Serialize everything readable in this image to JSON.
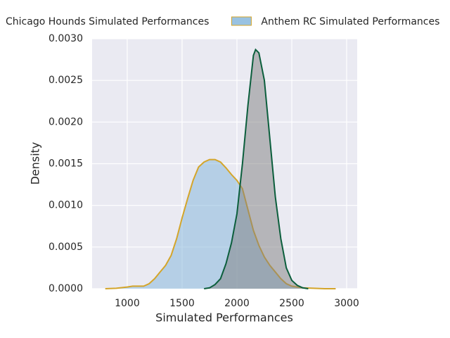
{
  "chart_data": {
    "type": "kde",
    "xlabel": "Simulated Performances",
    "ylabel": "Density",
    "xlim": [
      680,
      3096
    ],
    "ylim": [
      0,
      0.003
    ],
    "xticks": [
      1000,
      1500,
      2000,
      2500,
      3000
    ],
    "yticks": [
      {
        "value": 0,
        "label": "0.0000"
      },
      {
        "value": 0.0005,
        "label": "0.0005"
      },
      {
        "value": 0.001,
        "label": "0.0010"
      },
      {
        "value": 0.0015,
        "label": "0.0015"
      },
      {
        "value": 0.002,
        "label": "0.0020"
      },
      {
        "value": 0.0025,
        "label": "0.0025"
      },
      {
        "value": 0.003,
        "label": "0.0030"
      }
    ],
    "grid": true,
    "legend": "top",
    "series": [
      {
        "name": "Anthem RC Simulated Performances",
        "color": "#7fb3d9",
        "edgecolor": "#d4a52a",
        "x": [
          800,
          900,
          1000,
          1050,
          1100,
          1150,
          1200,
          1250,
          1300,
          1350,
          1400,
          1450,
          1500,
          1550,
          1600,
          1650,
          1700,
          1750,
          1800,
          1850,
          1900,
          1950,
          2000,
          2050,
          2100,
          2150,
          2200,
          2250,
          2300,
          2350,
          2400,
          2450,
          2500,
          2550,
          2600,
          2700,
          2800,
          2900
        ],
        "values": [
          0,
          5e-06,
          2e-05,
          3e-05,
          3e-05,
          3e-05,
          6e-05,
          0.00012,
          0.0002,
          0.00028,
          0.0004,
          0.0006,
          0.00085,
          0.00108,
          0.0013,
          0.00146,
          0.00152,
          0.00155,
          0.00155,
          0.00152,
          0.00145,
          0.00137,
          0.0013,
          0.0012,
          0.00095,
          0.0007,
          0.00052,
          0.00038,
          0.00028,
          0.0002,
          0.00012,
          6e-05,
          3e-05,
          2e-05,
          1e-05,
          5e-06,
          0,
          0
        ]
      },
      {
        "name": "Chicago Hounds Simulated Performances",
        "color": "#808080",
        "edgecolor": "#0b5e3c",
        "x": [
          1700,
          1750,
          1800,
          1850,
          1900,
          1950,
          2000,
          2050,
          2100,
          2150,
          2170,
          2200,
          2250,
          2300,
          2350,
          2400,
          2450,
          2500,
          2550,
          2600,
          2650
        ],
        "values": [
          0,
          1e-05,
          5e-05,
          0.00012,
          0.0003,
          0.00055,
          0.0009,
          0.0015,
          0.0022,
          0.0028,
          0.00287,
          0.00283,
          0.0025,
          0.0018,
          0.0011,
          0.0006,
          0.00025,
          0.0001,
          4e-05,
          1e-05,
          0
        ]
      }
    ]
  }
}
